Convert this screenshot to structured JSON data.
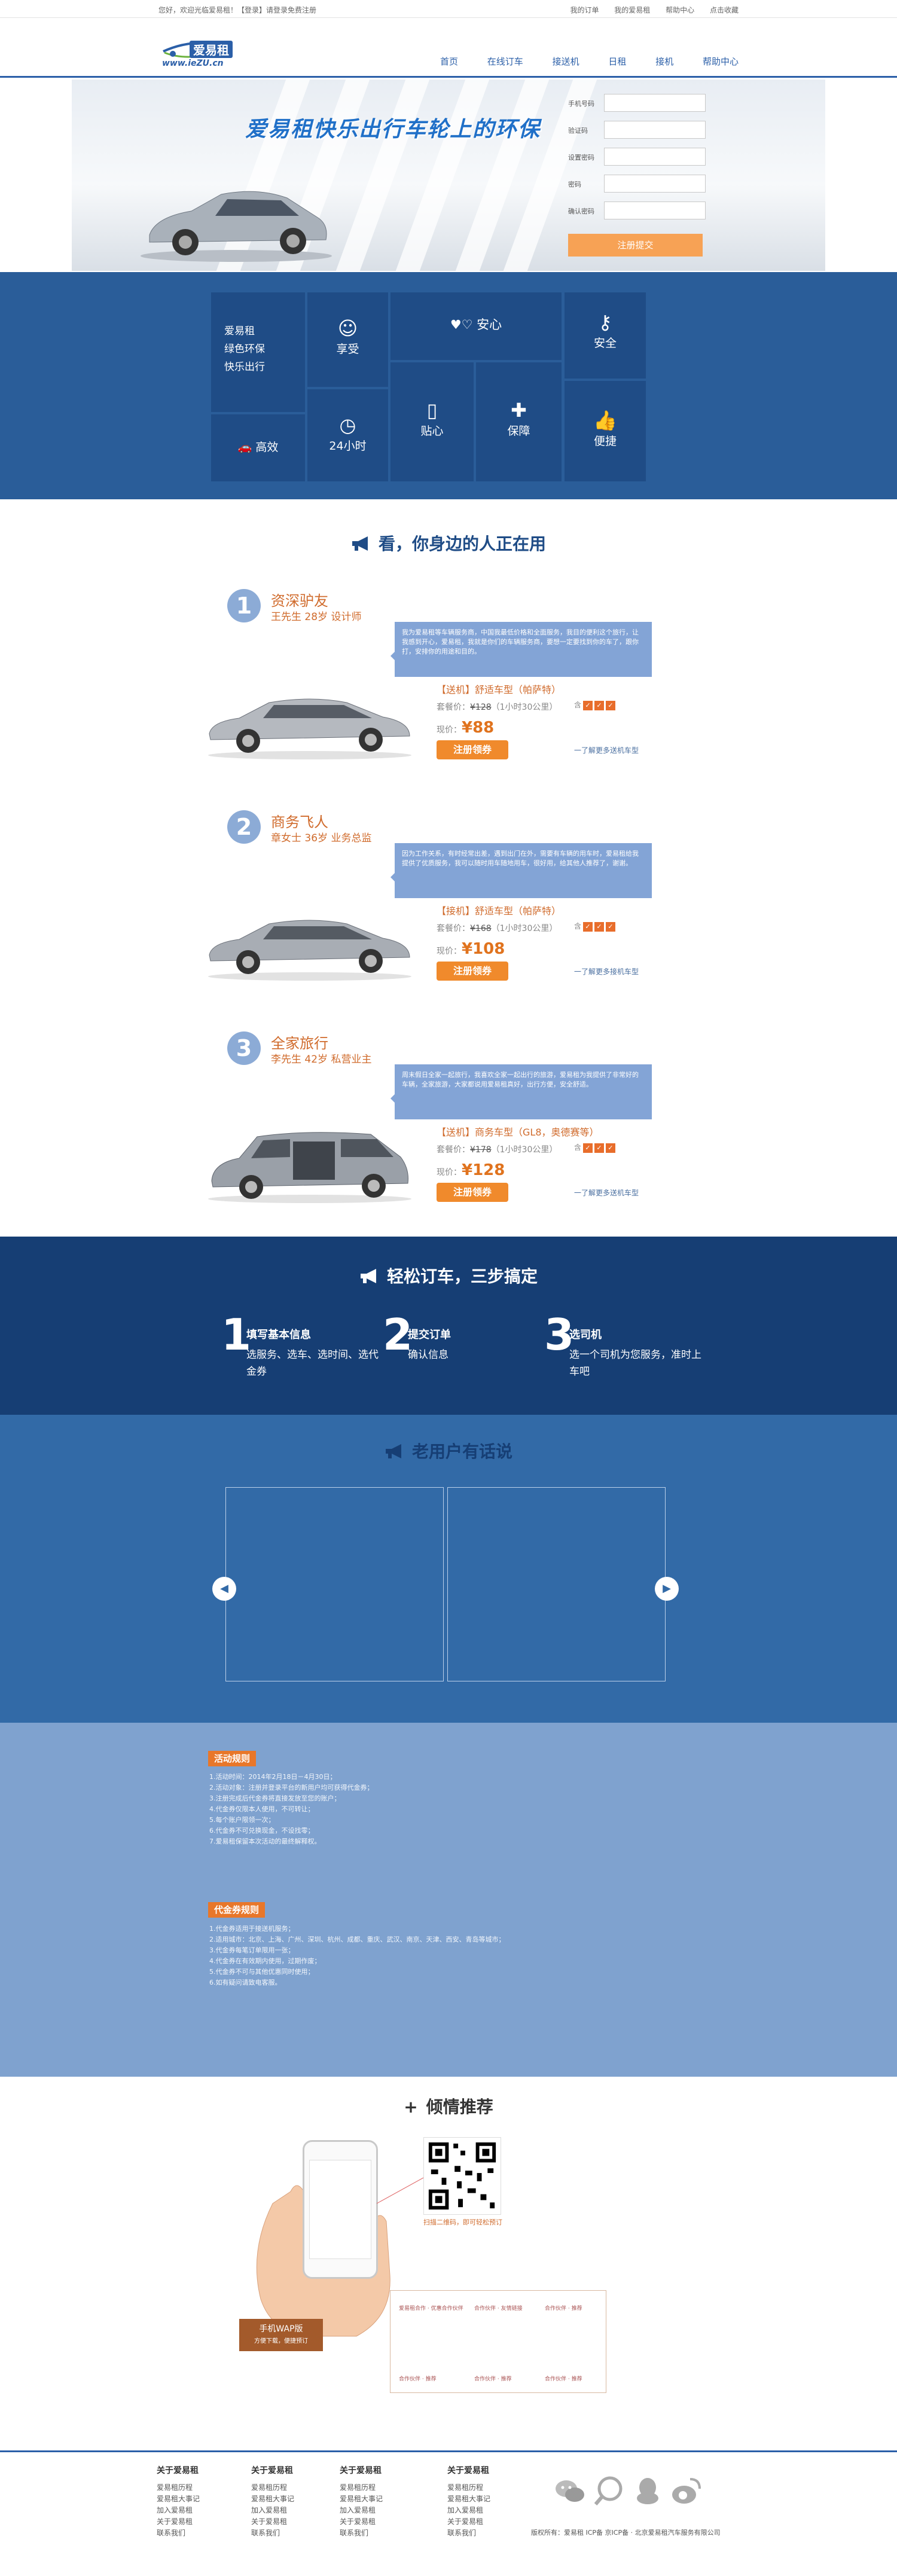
{
  "topbar": {
    "greeting": "您好，欢迎光临爱易租！【登录】请登录免费注册",
    "links": [
      "我的订单",
      "我的爱易租",
      "帮助中心",
      "点击收藏"
    ]
  },
  "header": {
    "logo_text": "爱易租",
    "logo_url": "www.ieZU.cn",
    "nav": [
      "首页",
      "在线订车",
      "接送机",
      "日租",
      "接机",
      "帮助中心"
    ]
  },
  "banner": {
    "slogan": "爱易租快乐出行车轮上的环保",
    "form_labels": [
      "手机号码",
      "验证码",
      "设置密码",
      "密码",
      "确认密码"
    ],
    "submit": "注册提交"
  },
  "features": {
    "intro": [
      "爱易租",
      "绿色环保",
      "快乐出行"
    ],
    "tiles": [
      "享受",
      "安心",
      "安全",
      "高效",
      "24小时",
      "贴心",
      "保障",
      "便捷"
    ]
  },
  "users": {
    "title": "看，你身边的人正在用",
    "personas": [
      {
        "num": "1",
        "title": "资深驴友",
        "sub": "王先生 28岁 设计师",
        "quote": "我为爱易租等车辆服务商，中国我最低价格和全面服务，我目的便利这个旅行，让我感到开心，爱易租，我就是你们的车辆服务商，要想一定要找到你的车了，跟你打，安排你的用途和目的。",
        "model": "【送机】舒适车型（帕萨特）",
        "orig_label": "套餐价：",
        "orig_price": "¥128",
        "orig_note": "（1小时30公里）",
        "badge_label": "含",
        "price_label": "现价：",
        "price": "¥88",
        "cta": "注册领券",
        "more": "一了解更多送机车型"
      },
      {
        "num": "2",
        "title": "商务飞人",
        "sub": "章女士 36岁 业务总监",
        "quote": "因为工作关系，有时经常出差，遇到出门在外，需要有车辆的用车时，爱易租给我提供了优质服务，我可以随时用车随地用车，很好用，给其他人推荐了，谢谢。",
        "model": "【接机】舒适车型（帕萨特）",
        "orig_label": "套餐价：",
        "orig_price": "¥168",
        "orig_note": "（1小时30公里）",
        "badge_label": "含",
        "price_label": "现价：",
        "price": "¥108",
        "cta": "注册领券",
        "more": "一了解更多接机车型"
      },
      {
        "num": "3",
        "title": "全家旅行",
        "sub": "李先生 42岁 私营业主",
        "quote": "周末假日全家一起旅行，我喜欢全家一起出行的旅游，爱易租为我提供了非常好的车辆，全家旅游，大家都说用爱易租真好，出行方便，安全舒适。",
        "model": "【送机】商务车型（GL8，奥德赛等）",
        "orig_label": "套餐价：",
        "orig_price": "¥178",
        "orig_note": "（1小时30公里）",
        "badge_label": "含",
        "price_label": "现价：",
        "price": "¥128",
        "cta": "注册领券",
        "more": "一了解更多送机车型"
      }
    ]
  },
  "steps": {
    "title": "轻松订车，三步搞定",
    "items": [
      {
        "num": "1",
        "title": "填写基本信息",
        "desc": "选服务、选车、选时间、选代金券"
      },
      {
        "num": "2",
        "title": "提交订单",
        "desc": "确认信息"
      },
      {
        "num": "3",
        "title": "选司机",
        "desc": "选一个司机为您服务，准时上车吧"
      }
    ]
  },
  "testimonials": {
    "title": "老用户有话说",
    "prev": "◀",
    "next": "▶"
  },
  "rules": {
    "tag1": "活动规则",
    "lines1": [
      "1.活动时间：2014年2月18日－4月30日；",
      "2.活动对象：注册并登录平台的新用户均可获得代金券；",
      "3.注册完成后代金券将直接发放至您的账户；",
      "4.代金券仅限本人使用，不可转让；",
      "5.每个账户限领一次；",
      "6.代金券不可兑换现金，不设找零；",
      "7.爱易租保留本次活动的最终解释权。"
    ],
    "tag2": "代金券规则",
    "lines2": [
      "1.代金券适用于接送机服务；",
      "2.适用城市：北京、上海、广州、深圳、杭州、成都、重庆、武汉、南京、天津、西安、青岛等城市；",
      "3.代金券每笔订单限用一张；",
      "4.代金券在有效期内使用，过期作废；",
      "5.代金券不可与其他优惠同时使用；",
      "6.如有疑问请致电客服。"
    ]
  },
  "recommend": {
    "title": "倾情推荐",
    "wap_label": "手机WAP版",
    "wap_sub": "方便下载，便捷预订",
    "qr_caption": "扫描二维码，即可轻松预订",
    "sponsors": [
      "爱易租合作 · 优惠合作伙伴",
      "合作伙伴 · 友情链接",
      "合作伙伴 · 推荐",
      "合作伙伴 · 推荐",
      "合作伙伴 · 推荐",
      "合作伙伴 · 推荐"
    ]
  },
  "footer": {
    "columns": [
      {
        "title": "关于爱易租",
        "items": [
          "爱易租历程",
          "爱易租大事记",
          "加入爱易租",
          "关于爱易租",
          "联系我们"
        ]
      },
      {
        "title": "关于爱易租",
        "items": [
          "爱易租历程",
          "爱易租大事记",
          "加入爱易租",
          "关于爱易租",
          "联系我们"
        ]
      },
      {
        "title": "关于爱易租",
        "items": [
          "爱易租历程",
          "爱易租大事记",
          "加入爱易租",
          "关于爱易租",
          "联系我们"
        ]
      },
      {
        "title": "关于爱易租",
        "items": [
          "爱易租历程",
          "爱易租大事记",
          "加入爱易租",
          "关于爱易租",
          "联系我们"
        ]
      }
    ],
    "copyright": "版权所有：爱易租 ICP备 京ICP备 · 北京爱易租汽车服务有限公司"
  },
  "colors": {
    "brand_blue": "#2b5fa8",
    "dark_blue": "#163e74",
    "accent_orange": "#f08a2c"
  }
}
